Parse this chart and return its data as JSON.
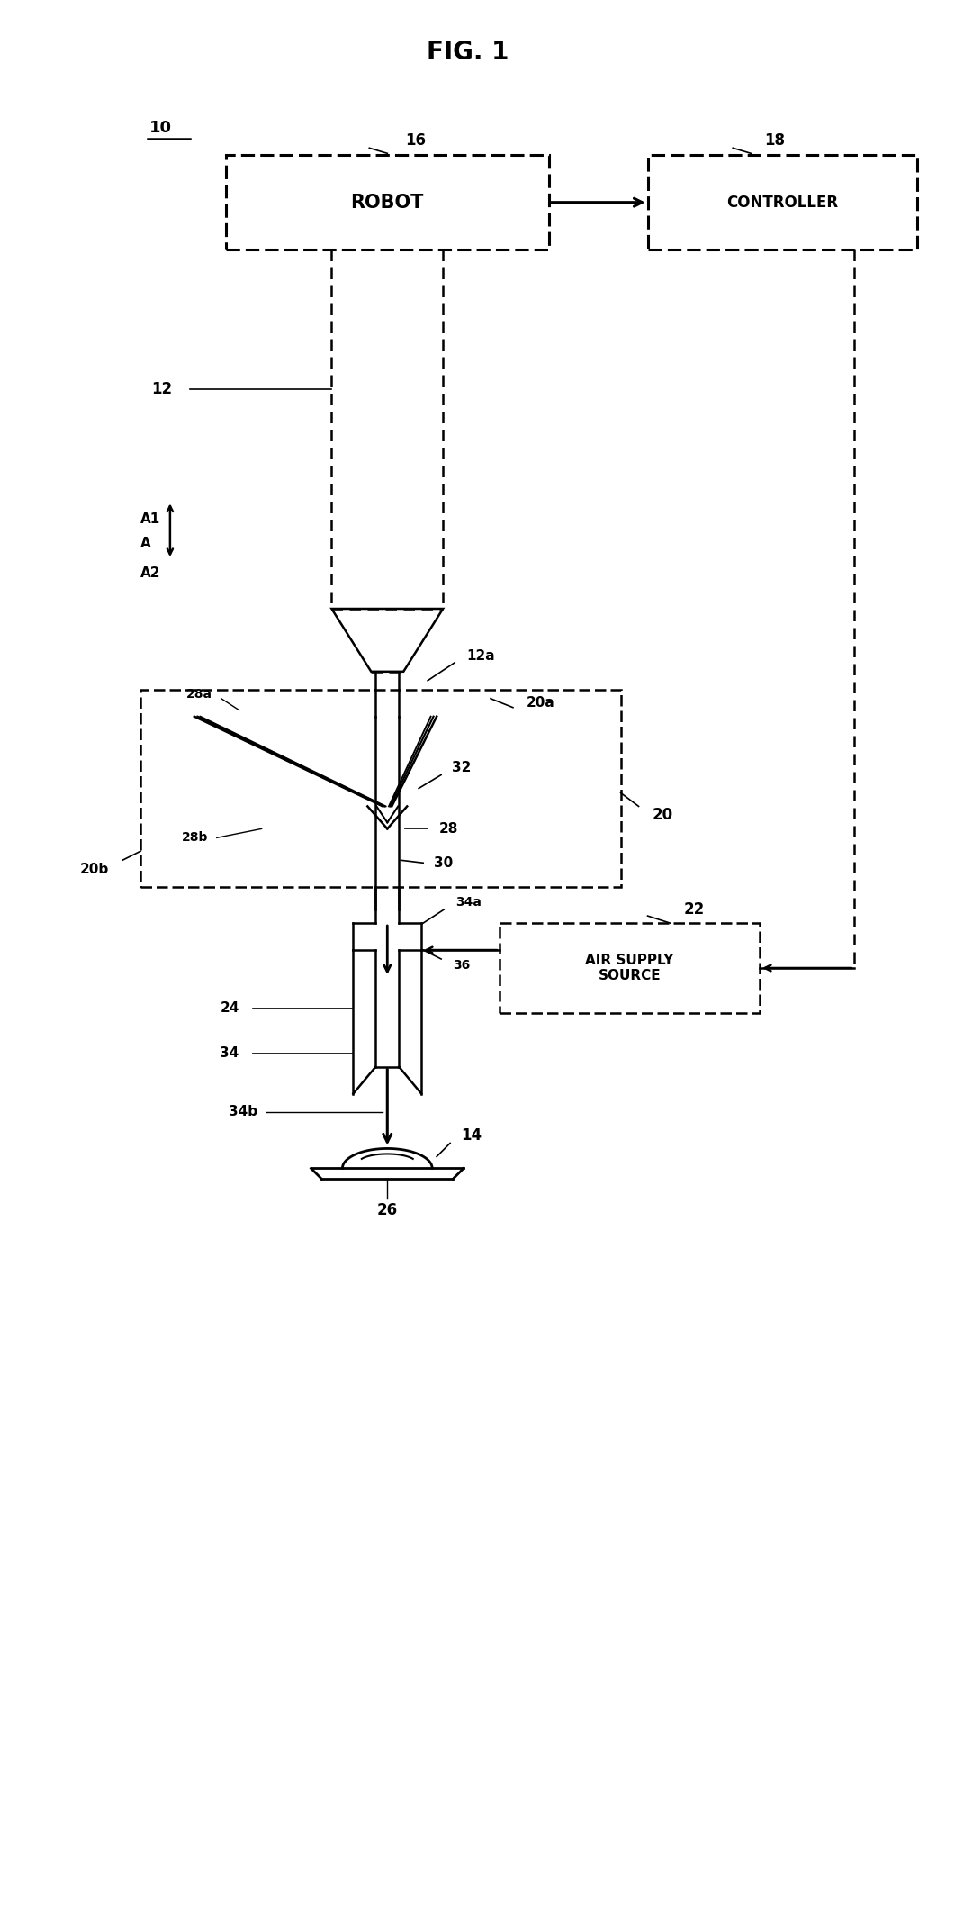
{
  "title": "FIG. 1",
  "bg_color": "#ffffff",
  "label_10": "10",
  "label_12": "12",
  "label_12a": "12a",
  "label_14": "14",
  "label_16": "16",
  "label_18": "18",
  "label_20": "20",
  "label_20a": "20a",
  "label_20b": "20b",
  "label_22": "22",
  "label_24": "24",
  "label_26": "26",
  "label_28": "28",
  "label_28a": "28a",
  "label_28b": "28b",
  "label_30": "30",
  "label_32": "32",
  "label_34": "34",
  "label_34a": "34a",
  "label_34b": "34b",
  "label_36": "36",
  "label_A1": "A1",
  "label_A": "A",
  "label_A2": "A2",
  "robot_text": "ROBOT",
  "controller_text": "CONTROLLER",
  "air_supply_text": "AIR SUPPLY\nSOURCE",
  "line_color": "#000000",
  "text_color": "#000000"
}
